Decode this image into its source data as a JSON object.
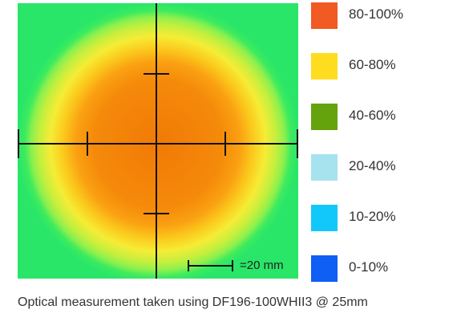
{
  "chart_data": {
    "type": "heatmap",
    "title": "",
    "xlabel": "",
    "ylabel": "",
    "scale_bar": {
      "label": "=20 mm",
      "length_mm": 20
    },
    "legend_position": "right",
    "legend": [
      {
        "label": "80-100%",
        "color": "#f15a22"
      },
      {
        "label": "60-80%",
        "color": "#fedd20"
      },
      {
        "label": "40-60%",
        "color": "#65a30d"
      },
      {
        "label": "20-40%",
        "color": "#a7e3ee"
      },
      {
        "label": "10-20%",
        "color": "#12c8fb"
      },
      {
        "label": "0-10%",
        "color": "#0f5ff5"
      }
    ]
  },
  "caption": "Optical measurement taken using DF196-100WHII3 @ 25mm"
}
